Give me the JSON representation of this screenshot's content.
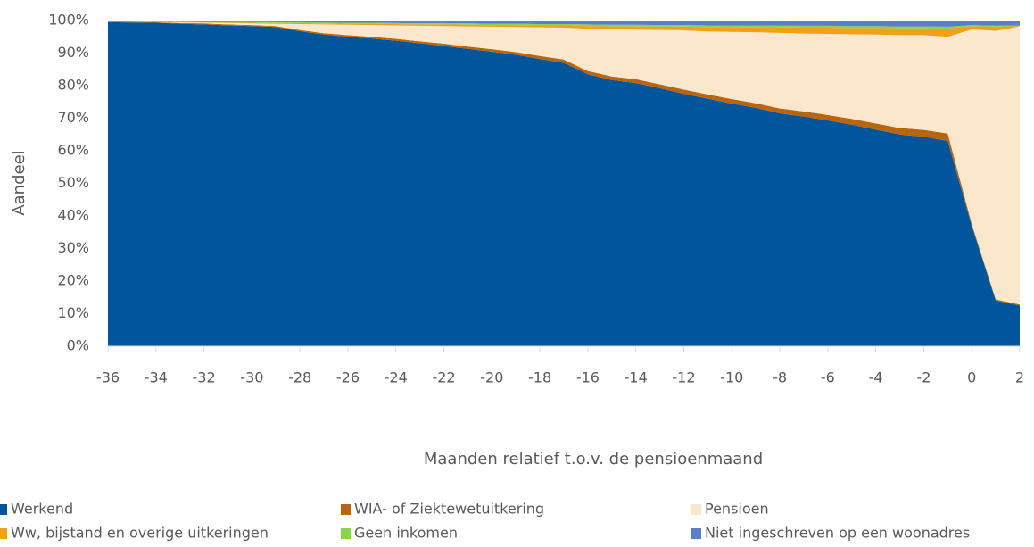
{
  "chart_data": {
    "type": "stacked_area",
    "ylabel": "Aandeel",
    "xlabel": "Maanden relatief t.o.v. de pensioenmaand",
    "x": [
      -36,
      -35,
      -34,
      -33,
      -32,
      -31,
      -30,
      -29,
      -28,
      -27,
      -26,
      -25,
      -24,
      -23,
      -22,
      -21,
      -20,
      -19,
      -18,
      -17,
      -16,
      -15,
      -14,
      -13,
      -12,
      -11,
      -10,
      -9,
      -8,
      -7,
      -6,
      -5,
      -4,
      -3,
      -2,
      -1,
      0,
      1,
      2
    ],
    "xlim": [
      -36,
      2
    ],
    "xticks": [
      -36,
      -34,
      -32,
      -30,
      -28,
      -26,
      -24,
      -22,
      -20,
      -18,
      -16,
      -14,
      -12,
      -10,
      -8,
      -6,
      -4,
      -2,
      0,
      2
    ],
    "ylim": [
      0,
      100
    ],
    "yticks": [
      {
        "value": 0,
        "label": "0%"
      },
      {
        "value": 10,
        "label": "10%"
      },
      {
        "value": 20,
        "label": "20%"
      },
      {
        "value": 30,
        "label": "30%"
      },
      {
        "value": 40,
        "label": "40%"
      },
      {
        "value": 50,
        "label": "50%"
      },
      {
        "value": 60,
        "label": "60%"
      },
      {
        "value": 70,
        "label": "70%"
      },
      {
        "value": 80,
        "label": "80%"
      },
      {
        "value": 90,
        "label": "90%"
      },
      {
        "value": 100,
        "label": "100%"
      }
    ],
    "legend": "bottom",
    "series": [
      {
        "name": "Werkend",
        "color": "#00559b",
        "values": [
          99.5,
          99.4,
          99.3,
          99.0,
          98.8,
          98.5,
          98.3,
          98.0,
          96.7,
          95.7,
          95.0,
          94.5,
          93.8,
          93.0,
          92.2,
          91.3,
          90.4,
          89.5,
          88.2,
          87.0,
          83.5,
          81.7,
          80.8,
          79.2,
          77.5,
          76.0,
          74.5,
          73.2,
          71.5,
          70.5,
          69.3,
          68.0,
          66.5,
          65.0,
          64.3,
          63.0,
          37.0,
          14.0,
          12.5
        ]
      },
      {
        "name": "WIA- of Ziektewetuitkering",
        "color": "#b8650f",
        "values": [
          0.2,
          0.2,
          0.2,
          0.2,
          0.3,
          0.3,
          0.3,
          0.3,
          0.4,
          0.4,
          0.5,
          0.5,
          0.6,
          0.6,
          0.7,
          0.7,
          0.8,
          0.8,
          0.9,
          1.0,
          1.0,
          1.1,
          1.2,
          1.2,
          1.3,
          1.3,
          1.4,
          1.4,
          1.5,
          1.6,
          1.7,
          1.8,
          1.9,
          2.0,
          2.1,
          2.3,
          0.6,
          0.4,
          0.3
        ]
      },
      {
        "name": "Pensioen",
        "color": "#fbe8cc",
        "values": [
          0,
          0,
          0,
          0.2,
          0.2,
          0.4,
          0.5,
          0.7,
          1.8,
          2.7,
          3.2,
          3.6,
          4.1,
          4.8,
          5.4,
          6.2,
          6.9,
          7.7,
          8.8,
          9.8,
          13.0,
          14.5,
          15.2,
          16.7,
          18.2,
          19.3,
          20.6,
          21.8,
          23.2,
          23.9,
          24.9,
          26.0,
          27.3,
          28.5,
          29.1,
          29.7,
          59.7,
          82.4,
          85.4
        ]
      },
      {
        "name": "Ww, bijstand en overige uitkeringen",
        "color": "#f2a017",
        "values": [
          0.1,
          0.1,
          0.1,
          0.1,
          0.1,
          0.2,
          0.2,
          0.2,
          0.3,
          0.3,
          0.3,
          0.4,
          0.4,
          0.4,
          0.5,
          0.5,
          0.5,
          0.6,
          0.6,
          0.7,
          0.8,
          0.9,
          1.0,
          1.0,
          1.1,
          1.4,
          1.5,
          1.6,
          1.7,
          1.8,
          1.9,
          1.9,
          2.0,
          2.1,
          2.1,
          2.5,
          1.0,
          1.3,
          0.1
        ]
      },
      {
        "name": "Geen inkomen",
        "color": "#8dd24e",
        "values": [
          0.1,
          0.1,
          0.2,
          0.2,
          0.2,
          0.2,
          0.3,
          0.3,
          0.3,
          0.3,
          0.3,
          0.3,
          0.3,
          0.4,
          0.4,
          0.4,
          0.4,
          0.4,
          0.4,
          0.4,
          0.5,
          0.5,
          0.5,
          0.5,
          0.5,
          0.5,
          0.5,
          0.5,
          0.6,
          0.6,
          0.6,
          0.6,
          0.6,
          0.6,
          0.6,
          0.6,
          0.3,
          0.3,
          0.2
        ]
      },
      {
        "name": "Niet ingeschreven op een woonadres",
        "color": "#5b7ec9",
        "values": [
          0.1,
          0.2,
          0.2,
          0.3,
          0.4,
          0.4,
          0.4,
          0.5,
          0.5,
          0.6,
          0.7,
          0.7,
          0.8,
          0.8,
          0.8,
          0.9,
          1.0,
          1.0,
          1.1,
          1.1,
          1.2,
          1.3,
          1.3,
          1.4,
          1.4,
          1.5,
          1.5,
          1.5,
          1.5,
          1.6,
          1.6,
          1.7,
          1.7,
          1.8,
          1.8,
          1.9,
          1.4,
          1.6,
          1.5
        ]
      }
    ]
  }
}
